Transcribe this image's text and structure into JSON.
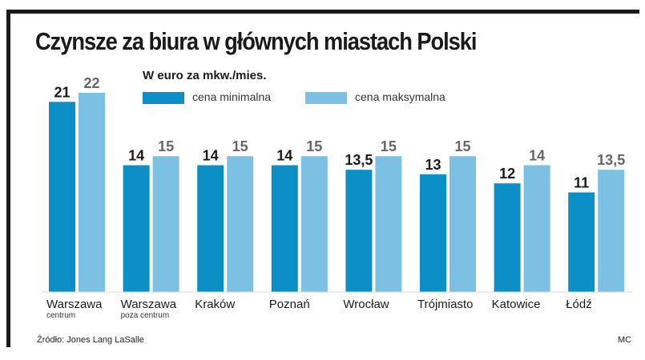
{
  "title": "Czynsze za biura w głównych miastach Polski",
  "subtitle": "W euro za mkw./mies.",
  "source": "Źródło: Jones Lang LaSalle",
  "credit": "MC",
  "colors": {
    "min": "#0b8fc6",
    "max": "#7cc1e3",
    "frame": "#1a1a1a",
    "label_min": "#1a1a1a",
    "label_max": "#666666"
  },
  "chart_data": {
    "type": "bar",
    "title": "Czynsze za biura w głównych miastach Polski",
    "subtitle": "W euro za mkw./mies.",
    "categories": [
      "Warszawa",
      "Warszawa",
      "Kraków",
      "Poznań",
      "Wrocław",
      "Trójmiasto",
      "Katowice",
      "Łódź"
    ],
    "category_sublabels": [
      "centrum",
      "poza centrum",
      "",
      "",
      "",
      "",
      "",
      ""
    ],
    "series": [
      {
        "name": "cena minimalna",
        "values": [
          21,
          14,
          14,
          14,
          13.5,
          13,
          12,
          11
        ],
        "labels": [
          "21",
          "14",
          "14",
          "14",
          "13,5",
          "13",
          "12",
          "11"
        ]
      },
      {
        "name": "cena maksymalna",
        "values": [
          22,
          15,
          15,
          15,
          15,
          15,
          14,
          13.5
        ],
        "labels": [
          "22",
          "15",
          "15",
          "15",
          "15",
          "15",
          "14",
          "13,5"
        ]
      }
    ],
    "ylim": [
      0,
      22
    ],
    "legend_position": "top",
    "grid": false
  }
}
